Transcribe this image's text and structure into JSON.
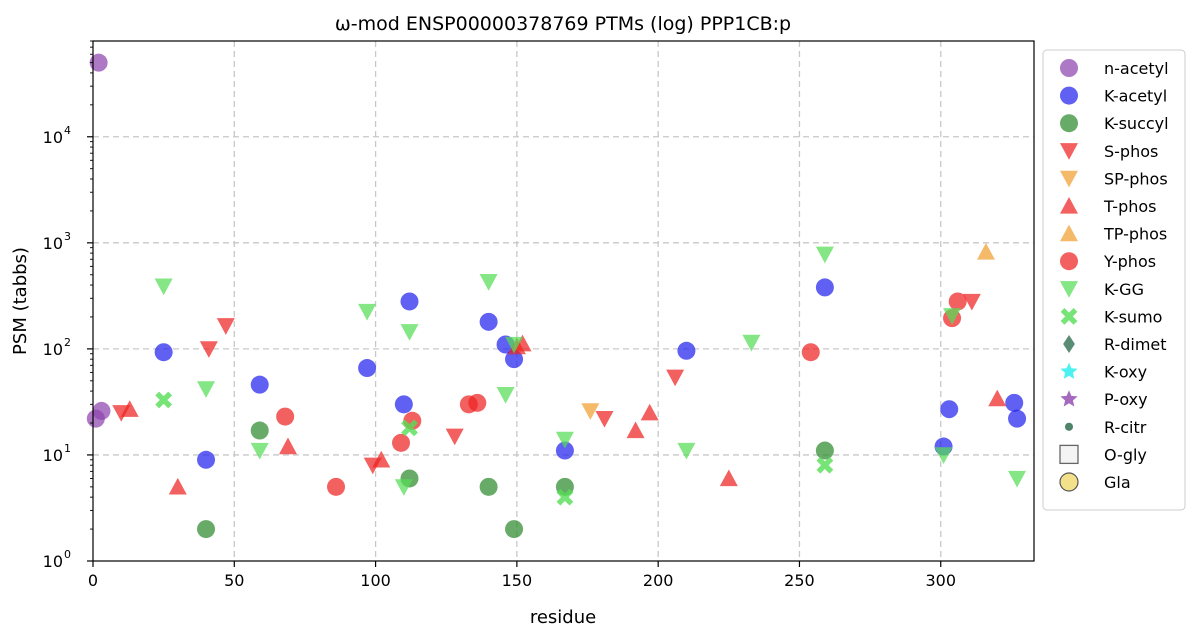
{
  "chart_data": {
    "type": "scatter",
    "title": "ω-mod ENSP00000378769 PTMs (log) PPP1CB:p",
    "xlabel": "residue",
    "ylabel": "PSM (tabbs)",
    "xlim": [
      0,
      333
    ],
    "ylim": [
      1,
      80000
    ],
    "yscale": "log",
    "grid": true,
    "legend_position": "outside-right",
    "x_ticks": [
      {
        "value": 0,
        "label": "0"
      },
      {
        "value": 50,
        "label": "50"
      },
      {
        "value": 100,
        "label": "100"
      },
      {
        "value": 150,
        "label": "150"
      },
      {
        "value": 200,
        "label": "200"
      },
      {
        "value": 250,
        "label": "250"
      },
      {
        "value": 300,
        "label": "300"
      }
    ],
    "y_ticks": [
      {
        "value": 1,
        "base": "10",
        "exp": "0"
      },
      {
        "value": 10,
        "base": "10",
        "exp": "1"
      },
      {
        "value": 100,
        "base": "10",
        "exp": "2"
      },
      {
        "value": 1000,
        "base": "10",
        "exp": "3"
      },
      {
        "value": 10000,
        "base": "10",
        "exp": "4"
      }
    ],
    "series": [
      {
        "name": "n-acetyl",
        "marker": "circle",
        "color": "#8e44ad",
        "points": [
          [
            2,
            50000
          ],
          [
            3,
            26
          ],
          [
            1,
            22
          ]
        ]
      },
      {
        "name": "K-acetyl",
        "marker": "circle",
        "color": "#2222ee",
        "points": [
          [
            25,
            93
          ],
          [
            40,
            9
          ],
          [
            59,
            46
          ],
          [
            97,
            66
          ],
          [
            110,
            30
          ],
          [
            112,
            280
          ],
          [
            140,
            180
          ],
          [
            146,
            110
          ],
          [
            149,
            80
          ],
          [
            167,
            11
          ],
          [
            210,
            96
          ],
          [
            259,
            380
          ],
          [
            301,
            12
          ],
          [
            303,
            27
          ],
          [
            326,
            31
          ],
          [
            327,
            22
          ]
        ]
      },
      {
        "name": "K-succyl",
        "marker": "circle",
        "color": "#2e8b2e",
        "points": [
          [
            40,
            2
          ],
          [
            59,
            17
          ],
          [
            112,
            6
          ],
          [
            140,
            5
          ],
          [
            149,
            2
          ],
          [
            167,
            5
          ],
          [
            259,
            11
          ]
        ]
      },
      {
        "name": "S-phos",
        "marker": "triangle-down",
        "color": "#ee2222",
        "points": [
          [
            10,
            25
          ],
          [
            41,
            100
          ],
          [
            47,
            165
          ],
          [
            99,
            8
          ],
          [
            128,
            15
          ],
          [
            181,
            22
          ],
          [
            206,
            54
          ],
          [
            311,
            280
          ]
        ]
      },
      {
        "name": "SP-phos",
        "marker": "triangle-down",
        "color": "#f0a030",
        "points": [
          [
            176,
            26
          ]
        ]
      },
      {
        "name": "T-phos",
        "marker": "triangle-up",
        "color": "#ee2222",
        "points": [
          [
            13,
            27
          ],
          [
            30,
            5
          ],
          [
            69,
            12
          ],
          [
            102,
            9
          ],
          [
            150,
            105
          ],
          [
            152,
            112
          ],
          [
            192,
            17
          ],
          [
            197,
            25
          ],
          [
            225,
            6
          ],
          [
            320,
            34
          ]
        ]
      },
      {
        "name": "TP-phos",
        "marker": "triangle-up",
        "color": "#f0a030",
        "points": [
          [
            316,
            820
          ]
        ]
      },
      {
        "name": "Y-phos",
        "marker": "circle",
        "color": "#ee2222",
        "points": [
          [
            68,
            23
          ],
          [
            86,
            5
          ],
          [
            109,
            13
          ],
          [
            113,
            21
          ],
          [
            133,
            30
          ],
          [
            136,
            31
          ],
          [
            254,
            93
          ],
          [
            304,
            195
          ],
          [
            306,
            280
          ]
        ]
      },
      {
        "name": "K-GG",
        "marker": "triangle-down",
        "color": "#55dd55",
        "points": [
          [
            25,
            390
          ],
          [
            40,
            42
          ],
          [
            59,
            11
          ],
          [
            97,
            225
          ],
          [
            110,
            5
          ],
          [
            112,
            145
          ],
          [
            140,
            430
          ],
          [
            146,
            37
          ],
          [
            149,
            110
          ],
          [
            167,
            14
          ],
          [
            210,
            11
          ],
          [
            233,
            115
          ],
          [
            259,
            780
          ],
          [
            301,
            10
          ],
          [
            304,
            205
          ],
          [
            327,
            6
          ]
        ]
      },
      {
        "name": "K-sumo",
        "marker": "x",
        "color": "#55dd55",
        "points": [
          [
            25,
            33
          ],
          [
            112,
            18
          ],
          [
            167,
            4
          ],
          [
            259,
            8
          ]
        ]
      },
      {
        "name": "R-dimet",
        "marker": "diamond",
        "color": "#2f6f4f",
        "points": []
      },
      {
        "name": "K-oxy",
        "marker": "star",
        "color": "#22eeee",
        "points": []
      },
      {
        "name": "P-oxy",
        "marker": "star",
        "color": "#8e44ad",
        "points": []
      },
      {
        "name": "R-citr",
        "marker": "small-circle",
        "color": "#2f6f4f",
        "points": []
      },
      {
        "name": "O-gly",
        "marker": "square-open",
        "color": "#666666",
        "points": []
      },
      {
        "name": "Gla",
        "marker": "circle-open",
        "color": "#f2e08a",
        "points": []
      }
    ]
  }
}
